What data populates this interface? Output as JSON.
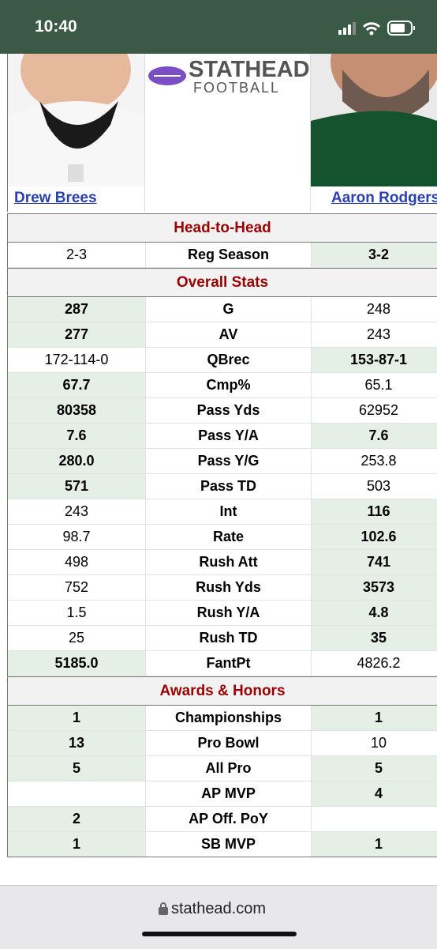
{
  "status_bar": {
    "time": "10:40"
  },
  "header": {
    "logo_top": "STATHEAD",
    "logo_bottom": "FOOTBALL",
    "players": [
      "Drew Brees",
      "Aaron Rodgers"
    ]
  },
  "sections": [
    {
      "title": "Head-to-Head",
      "rows": [
        {
          "left": "2-3",
          "label": "Reg Season",
          "right": "3-2",
          "leader": "right"
        }
      ]
    },
    {
      "title": "Overall Stats",
      "rows": [
        {
          "left": "287",
          "label": "G",
          "right": "248",
          "leader": "left"
        },
        {
          "left": "277",
          "label": "AV",
          "right": "243",
          "leader": "left"
        },
        {
          "left": "172-114-0",
          "label": "QBrec",
          "right": "153-87-1",
          "leader": "right"
        },
        {
          "left": "67.7",
          "label": "Cmp%",
          "right": "65.1",
          "leader": "left"
        },
        {
          "left": "80358",
          "label": "Pass Yds",
          "right": "62952",
          "leader": "left"
        },
        {
          "left": "7.6",
          "label": "Pass Y/A",
          "right": "7.6",
          "leader": "both"
        },
        {
          "left": "280.0",
          "label": "Pass Y/G",
          "right": "253.8",
          "leader": "left"
        },
        {
          "left": "571",
          "label": "Pass TD",
          "right": "503",
          "leader": "left"
        },
        {
          "left": "243",
          "label": "Int",
          "right": "116",
          "leader": "right"
        },
        {
          "left": "98.7",
          "label": "Rate",
          "right": "102.6",
          "leader": "right"
        },
        {
          "left": "498",
          "label": "Rush Att",
          "right": "741",
          "leader": "right"
        },
        {
          "left": "752",
          "label": "Rush Yds",
          "right": "3573",
          "leader": "right"
        },
        {
          "left": "1.5",
          "label": "Rush Y/A",
          "right": "4.8",
          "leader": "right"
        },
        {
          "left": "25",
          "label": "Rush TD",
          "right": "35",
          "leader": "right"
        },
        {
          "left": "5185.0",
          "label": "FantPt",
          "right": "4826.2",
          "leader": "left"
        }
      ]
    },
    {
      "title": "Awards & Honors",
      "rows": [
        {
          "left": "1",
          "label": "Championships",
          "right": "1",
          "leader": "both"
        },
        {
          "left": "13",
          "label": "Pro Bowl",
          "right": "10",
          "leader": "left"
        },
        {
          "left": "5",
          "label": "All Pro",
          "right": "5",
          "leader": "both"
        },
        {
          "left": null,
          "label": "AP MVP",
          "right": "4",
          "leader": "right"
        },
        {
          "left": "2",
          "label": "AP Off. PoY",
          "right": null,
          "leader": "left"
        },
        {
          "left": "1",
          "label": "SB MVP",
          "right": "1",
          "leader": "both"
        }
      ]
    }
  ],
  "browser_bar": {
    "url": "stathead.com"
  }
}
